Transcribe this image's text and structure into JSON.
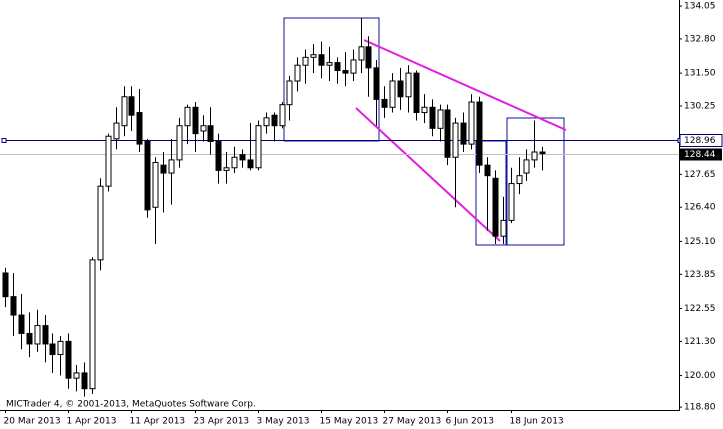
{
  "chart_data": {
    "type": "candlestick",
    "watermark": "MICTrader 4, © 2001-2013, MetaQuotes Software Corp.",
    "categories": [
      "20 Mar 2013",
      null,
      null,
      null,
      null,
      null,
      null,
      null,
      "1 Apr 2013",
      null,
      null,
      null,
      null,
      null,
      null,
      null,
      "11 Apr 2013",
      null,
      null,
      null,
      null,
      null,
      null,
      null,
      "23 Apr 2013",
      null,
      null,
      null,
      null,
      null,
      null,
      null,
      "3 May 2013",
      null,
      null,
      null,
      null,
      null,
      null,
      null,
      "15 May 2013",
      null,
      null,
      null,
      null,
      null,
      null,
      null,
      "27 May 2013",
      null,
      null,
      null,
      null,
      null,
      null,
      null,
      "6 Jun 2013",
      null,
      null,
      null,
      null,
      null,
      null,
      null,
      "18 Jun 2013",
      null,
      null,
      null,
      null
    ],
    "open": [
      123.9,
      123.0,
      122.3,
      121.6,
      121.2,
      121.9,
      121.2,
      120.8,
      121.3,
      119.9,
      120.1,
      119.5,
      124.4,
      127.2,
      129.0,
      129.5,
      130.6,
      130.0,
      128.9,
      126.4,
      128.0,
      127.7,
      128.2,
      129.5,
      130.2,
      129.3,
      129.5,
      128.9,
      127.8,
      127.9,
      128.4,
      128.2,
      127.9,
      129.5,
      129.9,
      129.5,
      130.3,
      131.2,
      131.8,
      132.1,
      132.2,
      131.8,
      131.9,
      131.6,
      131.5,
      132.0,
      132.5,
      131.7,
      130.5,
      130.2,
      131.2,
      130.6,
      131.5,
      130.0,
      130.2,
      129.4,
      130.1,
      128.3,
      129.6,
      128.8,
      130.4,
      128.0,
      127.5,
      125.3,
      125.9,
      127.3,
      127.7,
      128.2,
      128.5
    ],
    "high": [
      124.1,
      123.9,
      123.1,
      122.4,
      122.5,
      122.3,
      121.6,
      121.5,
      121.6,
      120.4,
      120.5,
      124.5,
      127.5,
      129.2,
      130.2,
      131.0,
      131.0,
      130.9,
      129.0,
      128.3,
      128.5,
      129.0,
      129.8,
      130.3,
      130.4,
      129.9,
      130.2,
      129.2,
      128.5,
      128.7,
      128.6,
      129.6,
      129.7,
      130.0,
      130.0,
      130.4,
      131.4,
      132.1,
      132.4,
      132.6,
      132.7,
      132.5,
      132.1,
      132.3,
      132.4,
      133.6,
      132.9,
      132.0,
      131.0,
      131.5,
      131.7,
      131.8,
      131.6,
      130.7,
      130.5,
      130.3,
      130.3,
      129.8,
      130.0,
      130.7,
      130.6,
      128.3,
      127.8,
      126.8,
      127.9,
      128.3,
      128.6,
      129.7,
      128.7
    ],
    "low": [
      122.6,
      121.5,
      121.0,
      120.7,
      120.9,
      120.5,
      120.1,
      120.0,
      119.5,
      119.4,
      119.2,
      119.3,
      124.0,
      127.0,
      128.6,
      129.1,
      129.3,
      128.5,
      126.0,
      125.0,
      126.2,
      126.5,
      127.9,
      128.8,
      128.5,
      128.9,
      128.4,
      127.3,
      127.3,
      127.7,
      127.9,
      127.8,
      127.8,
      129.2,
      128.9,
      129.4,
      129.7,
      130.8,
      131.1,
      131.5,
      131.3,
      131.2,
      131.1,
      131.0,
      131.2,
      131.5,
      130.6,
      129.5,
      129.8,
      130.0,
      130.1,
      130.0,
      129.7,
      129.6,
      129.1,
      128.9,
      128.0,
      126.4,
      128.5,
      128.6,
      127.7,
      125.5,
      125.0,
      125.0,
      125.8,
      126.9,
      127.4,
      127.9,
      127.8
    ],
    "close": [
      123.0,
      122.3,
      121.6,
      121.2,
      121.9,
      121.2,
      120.8,
      121.3,
      119.9,
      120.1,
      119.5,
      124.4,
      127.2,
      129.1,
      129.6,
      130.6,
      129.9,
      128.8,
      126.3,
      128.1,
      127.7,
      128.2,
      129.5,
      130.2,
      129.2,
      129.5,
      128.9,
      127.8,
      127.9,
      128.3,
      128.2,
      127.9,
      129.5,
      129.8,
      129.5,
      130.3,
      131.2,
      131.8,
      132.1,
      132.2,
      131.8,
      131.9,
      131.6,
      131.5,
      132.0,
      132.5,
      131.7,
      130.5,
      130.2,
      131.2,
      130.6,
      131.5,
      130.0,
      130.2,
      129.4,
      130.1,
      128.3,
      129.6,
      128.8,
      130.4,
      128.0,
      127.6,
      125.3,
      125.9,
      127.3,
      127.6,
      128.2,
      128.5,
      128.44
    ],
    "up_color": "#ffffff",
    "down_color": "#000000",
    "outline_color": "#000000",
    "ylim": [
      118.69,
      134.28
    ],
    "yticks": [
      134.05,
      {
        "value": 132.8,
        "label": "132.80"
      },
      {
        "value": 131.5,
        "label": "131.50"
      },
      130.25,
      127.65,
      {
        "value": 126.4,
        "label": "126.40"
      },
      {
        "value": 125.1,
        "label": "125.10"
      },
      123.85,
      122.55,
      {
        "value": 121.3,
        "label": "121.30"
      },
      {
        "value": 120,
        "label": "120.00"
      },
      {
        "value": 118.8,
        "label": "118.80"
      }
    ],
    "hline": 128.96,
    "hline_color": "#000080",
    "last_price": 128.44
  }
}
